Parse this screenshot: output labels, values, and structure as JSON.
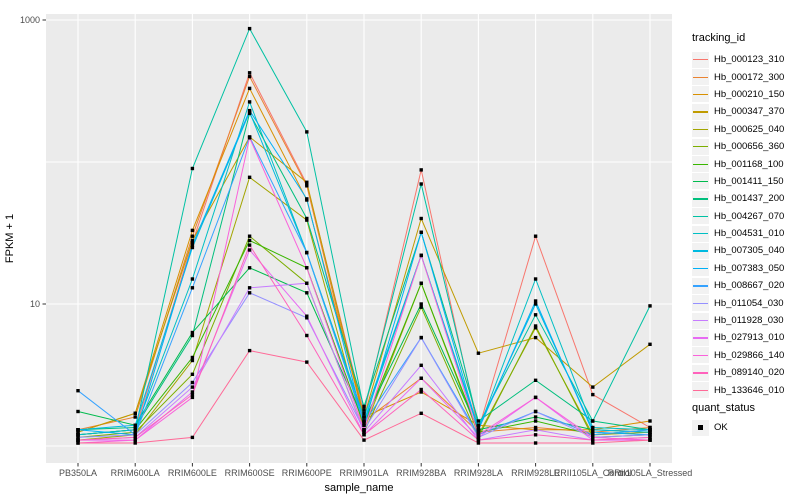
{
  "axis": {
    "tick_color": "#333333",
    "tick_label_color": "#4D4D4D",
    "title_color": "#000000"
  },
  "legend": {
    "tracking_title": "tracking_id",
    "quant_title": "quant_status",
    "quant_items": [
      {
        "label": "OK",
        "symbol": "black-square-point"
      }
    ],
    "key_background": "#F2F2F2"
  },
  "chart_data": {
    "type": "line",
    "title": "",
    "xlabel": "sample_name",
    "ylabel": "FPKM + 1",
    "y_scale": "log10",
    "ylim": [
      0.75,
      1100
    ],
    "y_gridlines": [
      1,
      10,
      100,
      1000
    ],
    "y_tick_labels": [
      {
        "value": 1000,
        "label": "1000"
      },
      {
        "value": 10,
        "label": "10"
      }
    ],
    "grid": "white major gridlines on gray panel",
    "legend_position": "right",
    "point_shape": "filled black square",
    "panel_background": "#EBEBEB",
    "gridline_color": "#FFFFFF",
    "categories": [
      "PB350LA",
      "RRIM600LA",
      "RRIM600LE",
      "RRIM600SE",
      "RRIM600PE",
      "RRIM901LA",
      "RRIM928BA",
      "RRIM928LA",
      "RRIM928LE",
      "RRII105LA_Control",
      "RRII105LA_Stressed"
    ],
    "series": [
      {
        "name": "Hb_000123_310",
        "color": "#F8766D",
        "values": [
          1.2,
          1.3,
          27,
          425,
          70,
          1.7,
          88,
          1.3,
          30,
          2.3,
          1.35
        ]
      },
      {
        "name": "Hb_000172_300",
        "color": "#EA8331",
        "values": [
          1.3,
          1.6,
          30,
          400,
          68,
          1.5,
          3.0,
          1.25,
          1.35,
          1.25,
          1.35
        ]
      },
      {
        "name": "Hb_000210_150",
        "color": "#D89000",
        "values": [
          1.25,
          1.7,
          33,
          330,
          54,
          1.6,
          2.4,
          1.4,
          1.3,
          1.3,
          1.5
        ]
      },
      {
        "name": "Hb_000347_370",
        "color": "#C09B00",
        "values": [
          1.25,
          1.7,
          28,
          150,
          72,
          1.6,
          40,
          4.5,
          5.8,
          2.6,
          5.2
        ]
      },
      {
        "name": "Hb_000625_040",
        "color": "#A3A500",
        "values": [
          1.1,
          1.2,
          4.0,
          78,
          39,
          1.3,
          14,
          1.2,
          6.8,
          1.2,
          1.25
        ]
      },
      {
        "name": "Hb_000656_360",
        "color": "#7CAE00",
        "values": [
          1.15,
          1.25,
          3.2,
          30,
          14,
          1.25,
          9.5,
          1.15,
          7.0,
          1.15,
          1.2
        ]
      },
      {
        "name": "Hb_001168_100",
        "color": "#39B600",
        "values": [
          1.2,
          1.3,
          4.2,
          28,
          18,
          1.4,
          14,
          1.25,
          1.5,
          1.2,
          1.3
        ]
      },
      {
        "name": "Hb_001411_150",
        "color": "#00BB4E",
        "values": [
          1.75,
          1.4,
          6.3,
          18,
          12,
          1.5,
          10,
          1.3,
          1.6,
          1.3,
          1.25
        ]
      },
      {
        "name": "Hb_001437_200",
        "color": "#00BF7D",
        "values": [
          1.3,
          1.35,
          6.0,
          220,
          40,
          1.9,
          32,
          1.5,
          2.9,
          1.5,
          1.3
        ]
      },
      {
        "name": "Hb_004267_070",
        "color": "#00C1A3",
        "values": [
          1.2,
          1.3,
          90,
          870,
          163,
          1.8,
          70,
          1.4,
          8.4,
          1.5,
          9.7
        ]
      },
      {
        "name": "Hb_004531_010",
        "color": "#00BFC4",
        "values": [
          1.2,
          1.3,
          15,
          265,
          23,
          1.6,
          22,
          1.3,
          15,
          1.35,
          1.3
        ]
      },
      {
        "name": "Hb_007305_040",
        "color": "#00BAE0",
        "values": [
          1.3,
          1.4,
          25,
          225,
          23,
          1.5,
          22,
          1.35,
          10,
          1.3,
          1.25
        ]
      },
      {
        "name": "Hb_007383_050",
        "color": "#00B0F6",
        "values": [
          1.3,
          1.2,
          26,
          230,
          55,
          1.4,
          32,
          1.3,
          10.5,
          1.25,
          1.2
        ]
      },
      {
        "name": "Hb_008667_020",
        "color": "#35A2FF",
        "values": [
          2.45,
          1.2,
          13,
          150,
          23,
          1.45,
          5.8,
          1.2,
          1.75,
          1.2,
          1.3
        ]
      },
      {
        "name": "Hb_011054_030",
        "color": "#9590FF",
        "values": [
          1.15,
          1.2,
          2.8,
          12,
          8,
          1.3,
          5.8,
          1.15,
          1.75,
          1.15,
          1.2
        ]
      },
      {
        "name": "Hb_011928_030",
        "color": "#C77CFF",
        "values": [
          1.1,
          1.15,
          2.6,
          13,
          14,
          1.25,
          3.7,
          1.1,
          1.3,
          1.1,
          1.15
        ]
      },
      {
        "name": "Hb_027913_010",
        "color": "#E76BF3",
        "values": [
          1.1,
          1.1,
          2.4,
          24,
          8.2,
          1.2,
          3.0,
          1.15,
          2.2,
          1.1,
          1.1
        ]
      },
      {
        "name": "Hb_029866_140",
        "color": "#FA62DB",
        "values": [
          1.05,
          1.1,
          2.2,
          148,
          18,
          1.3,
          22,
          1.2,
          2.2,
          1.15,
          1.1
        ]
      },
      {
        "name": "Hb_089140_020",
        "color": "#FF62BC",
        "values": [
          1.1,
          1.15,
          2.3,
          26,
          6,
          1.2,
          2.5,
          1.1,
          1.2,
          1.1,
          1.15
        ]
      },
      {
        "name": "Hb_133646_010",
        "color": "#FF6A98",
        "values": [
          1.05,
          1.05,
          1.15,
          4.7,
          3.9,
          1.1,
          1.7,
          1.05,
          1.05,
          1.05,
          1.1
        ]
      }
    ]
  }
}
